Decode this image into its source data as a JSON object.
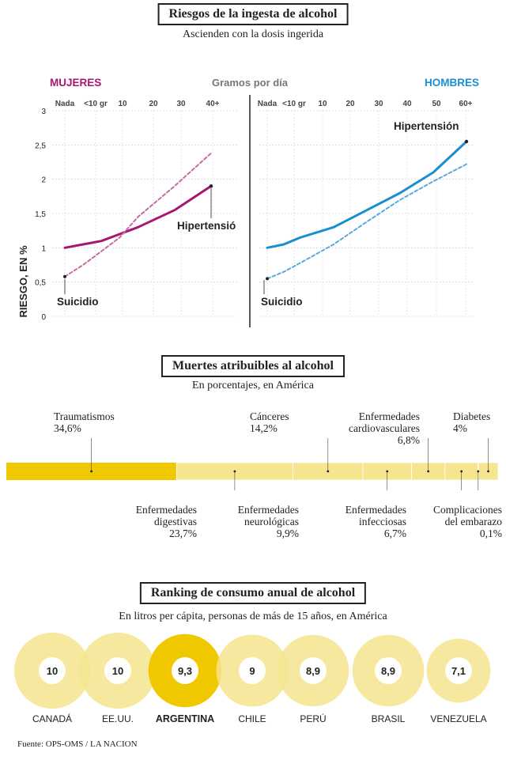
{
  "section1": {
    "title": "Riesgos de la ingesta de alcohol",
    "subtitle": "Ascienden con la dosis ingerida",
    "x_title": "Gramos por día",
    "y_title": "RIESGO, EN %",
    "y_ticks": [
      "3",
      "2,5",
      "2",
      "1,5",
      "1",
      "0,5",
      "0"
    ]
  },
  "chart_data": [
    {
      "type": "line",
      "title": "MUJERES",
      "x_ticks": [
        "Nada",
        "<10 gr",
        "10",
        "20",
        "30",
        "40+"
      ],
      "x_values": [
        0,
        5,
        10,
        20,
        30,
        40
      ],
      "ylim": [
        0,
        3
      ],
      "ylabel": "RIESGO, EN %",
      "xlabel": "Gramos por día",
      "colors": {
        "line": "#a8176f",
        "dashed": "#c96aa8"
      },
      "series": [
        {
          "name": "Hipertensió",
          "style": "solid",
          "x": [
            0,
            5,
            10,
            15,
            20,
            30,
            40
          ],
          "y": [
            1.0,
            1.05,
            1.1,
            1.2,
            1.3,
            1.55,
            1.9
          ]
        },
        {
          "name": "Suicidio",
          "style": "dashed",
          "x": [
            0,
            5,
            10,
            15,
            20,
            30,
            40
          ],
          "y": [
            0.58,
            0.75,
            0.95,
            1.15,
            1.45,
            1.9,
            2.38
          ]
        }
      ]
    },
    {
      "type": "line",
      "title": "HOMBRES",
      "x_ticks": [
        "Nada",
        "<10 gr",
        "10",
        "20",
        "30",
        "40",
        "50",
        "60+"
      ],
      "x_values": [
        0,
        5,
        10,
        20,
        30,
        40,
        50,
        60
      ],
      "ylim": [
        0,
        3
      ],
      "colors": {
        "line": "#1a8fd0",
        "dashed": "#5aa9de"
      },
      "series": [
        {
          "name": "Hipertensión",
          "style": "solid",
          "x": [
            0,
            5,
            10,
            20,
            30,
            40,
            50,
            60
          ],
          "y": [
            1.0,
            1.05,
            1.15,
            1.3,
            1.55,
            1.8,
            2.1,
            2.55
          ]
        },
        {
          "name": "Suicidio",
          "style": "dashed",
          "x": [
            0,
            5,
            10,
            20,
            30,
            40,
            50,
            60
          ],
          "y": [
            0.55,
            0.65,
            0.78,
            1.05,
            1.38,
            1.7,
            1.97,
            2.22
          ]
        }
      ]
    },
    {
      "type": "bar",
      "title": "Muertes atribuibles al alcohol",
      "subtitle": "En porcentajes, en América",
      "orientation": "stacked-horizontal",
      "colors": {
        "highlight": "#f0c800",
        "base": "#f4e58e"
      },
      "categories": [
        "Traumatismos",
        "Enfermedades digestivas",
        "Cánceres",
        "Enfermedades neurológicas",
        "Enfermedades cardiovasculares",
        "Enfermedades infecciosas",
        "Complicaciones del embarazo",
        "Diabetes"
      ],
      "values": [
        34.6,
        23.7,
        14.2,
        9.9,
        6.8,
        6.7,
        0.1,
        4.0
      ],
      "value_labels": [
        "34,6%",
        "23,7%",
        "14,2%",
        "9,9%",
        "6,8%",
        "6,7%",
        "0,1%",
        "4%"
      ]
    },
    {
      "type": "bar",
      "title": "Ranking de consumo anual de alcohol",
      "subtitle": "En litros per cápita, personas de más de 15 años, en América",
      "colors": {
        "highlight": "#f0c800",
        "base": "#f4e58e"
      },
      "categories": [
        "CANADÁ",
        "EE.UU.",
        "ARGENTINA",
        "CHILE",
        "PERÚ",
        "BRASIL",
        "VENEZUELA"
      ],
      "values": [
        10,
        10,
        9.3,
        9,
        8.9,
        8.9,
        7.1
      ],
      "value_labels": [
        "10",
        "10",
        "9,3",
        "9",
        "8,9",
        "8,9",
        "7,1"
      ]
    }
  ],
  "labels": {
    "mujeres": "MUJERES",
    "hombres": "HOMBRES",
    "hipertension_w": "Hipertensió",
    "hipertension_m": "Hipertensión",
    "suicidio_w": "Suicidio",
    "suicidio_m": "Suicidio"
  },
  "section2": {
    "title": "Muertes atribuibles al alcohol",
    "subtitle": "En porcentajes, en América",
    "top": [
      {
        "name": "Traumatismos",
        "value": "34,6%"
      },
      {
        "name": "Cánceres",
        "value": "14,2%"
      },
      {
        "name1": "Enfermedades",
        "name2": "cardiovasculares",
        "value": "6,8%"
      },
      {
        "name": "Diabetes",
        "value": "4%"
      }
    ],
    "bottom": [
      {
        "name1": "Enfermedades",
        "name2": "digestivas",
        "value": "23,7%"
      },
      {
        "name1": "Enfermedades",
        "name2": "neurológicas",
        "value": "9,9%"
      },
      {
        "name1": "Enfermedades",
        "name2": "infecciosas",
        "value": "6,7%"
      },
      {
        "name1": "Complicaciones",
        "name2": "del embarazo",
        "value": "0,1%"
      }
    ]
  },
  "section3": {
    "title": "Ranking de consumo anual de alcohol",
    "subtitle": "En litros per cápita, personas de más de 15 años, en América",
    "source": "Fuente: OPS-OMS / LA NACION"
  }
}
